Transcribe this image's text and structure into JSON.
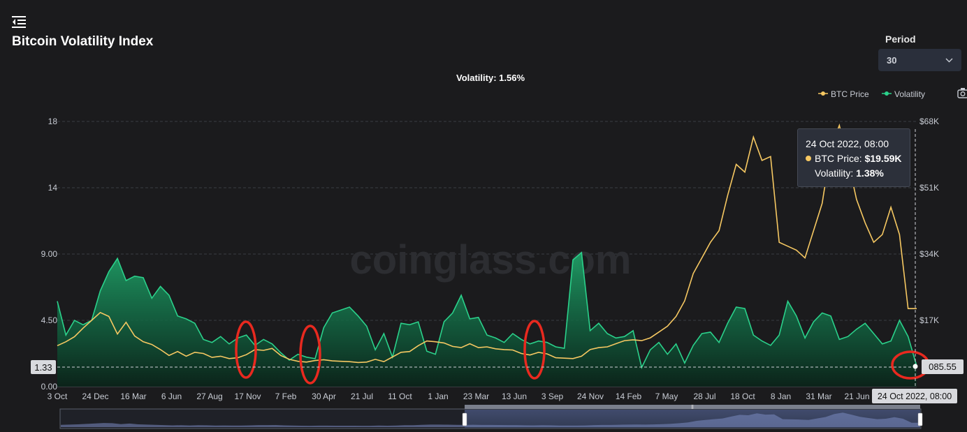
{
  "header": {
    "title": "Bitcoin Volatility Index",
    "period_label": "Period",
    "period_value": "30"
  },
  "summary": {
    "text": "Volatility: 1.56%"
  },
  "watermark": "coinglass.com",
  "legend": {
    "position": "top-right",
    "items": [
      {
        "name": "BTC Price",
        "color": "#f6c862"
      },
      {
        "name": "Volatility",
        "color": "#2bd18b"
      }
    ]
  },
  "tooltip": {
    "title": "24 Oct 2022, 08:00",
    "price_label": "BTC Price:",
    "price_value": "$19.59K",
    "vol_label": "Volatility:",
    "vol_value": "1.38%"
  },
  "crosshair": {
    "left_label": "1.33",
    "right_label": "085.55",
    "x_label": "24 Oct 2022, 08:00"
  },
  "icons": {
    "menu": "menu-collapse-icon",
    "camera": "camera-icon",
    "chevron": "chevron-down-icon"
  },
  "chart_data": {
    "type": "line",
    "x_ticks": [
      "3 Oct",
      "24 Dec",
      "16 Mar",
      "6 Jun",
      "27 Aug",
      "17 Nov",
      "7 Feb",
      "30 Apr",
      "21 Jul",
      "11 Oct",
      "1 Jan",
      "23 Mar",
      "13 Jun",
      "3 Sep",
      "24 Nov",
      "14 Feb",
      "7 May",
      "28 Jul",
      "18 Oct",
      "8 Jan",
      "31 Mar",
      "21 Jun"
    ],
    "y_left": {
      "ticks": [
        "0.00",
        "4.50",
        "9.00",
        "14",
        "18"
      ],
      "range": [
        0,
        18
      ]
    },
    "y_right": {
      "ticks": [
        "$17K",
        "$34K",
        "$51K",
        "$68K"
      ],
      "range": [
        0,
        68000
      ]
    },
    "grid": true,
    "x_index_range": [
      0,
      100
    ],
    "series": [
      {
        "name": "Volatility",
        "axis": "left",
        "color": "#2bd18b",
        "points": [
          [
            0,
            5.8
          ],
          [
            1,
            3.5
          ],
          [
            2,
            4.5
          ],
          [
            3,
            4.2
          ],
          [
            4,
            4.5
          ],
          [
            5,
            6.5
          ],
          [
            6,
            7.8
          ],
          [
            7,
            8.7
          ],
          [
            8,
            7.2
          ],
          [
            9,
            7.5
          ],
          [
            10,
            7.4
          ],
          [
            11,
            6.0
          ],
          [
            12,
            6.8
          ],
          [
            13,
            6.2
          ],
          [
            14,
            4.8
          ],
          [
            15,
            4.6
          ],
          [
            16,
            4.3
          ],
          [
            17,
            3.2
          ],
          [
            18,
            3.0
          ],
          [
            19,
            3.4
          ],
          [
            20,
            2.9
          ],
          [
            21,
            3.3
          ],
          [
            22,
            3.5
          ],
          [
            23,
            2.8
          ],
          [
            24,
            3.2
          ],
          [
            25,
            2.9
          ],
          [
            26,
            2.3
          ],
          [
            27,
            1.8
          ],
          [
            28,
            2.2
          ],
          [
            29,
            2.0
          ],
          [
            30,
            1.9
          ],
          [
            31,
            4.0
          ],
          [
            32,
            5.0
          ],
          [
            33,
            5.2
          ],
          [
            34,
            5.4
          ],
          [
            35,
            4.8
          ],
          [
            36,
            4.1
          ],
          [
            37,
            2.5
          ],
          [
            38,
            3.6
          ],
          [
            39,
            2.0
          ],
          [
            40,
            4.3
          ],
          [
            41,
            4.2
          ],
          [
            42,
            4.4
          ],
          [
            43,
            2.4
          ],
          [
            44,
            2.2
          ],
          [
            45,
            4.4
          ],
          [
            46,
            5.0
          ],
          [
            47,
            6.2
          ],
          [
            48,
            4.6
          ],
          [
            49,
            4.7
          ],
          [
            50,
            3.5
          ],
          [
            51,
            3.3
          ],
          [
            52,
            3.0
          ],
          [
            53,
            3.6
          ],
          [
            54,
            3.2
          ],
          [
            55,
            2.9
          ],
          [
            56,
            3.1
          ],
          [
            57,
            3.0
          ],
          [
            58,
            2.7
          ],
          [
            59,
            2.6
          ],
          [
            60,
            8.6
          ],
          [
            61,
            9.1
          ],
          [
            62,
            3.8
          ],
          [
            63,
            4.3
          ],
          [
            64,
            3.6
          ],
          [
            65,
            3.3
          ],
          [
            66,
            3.4
          ],
          [
            67,
            3.8
          ],
          [
            68,
            1.3
          ],
          [
            69,
            2.5
          ],
          [
            70,
            3.0
          ],
          [
            71,
            2.2
          ],
          [
            72,
            2.9
          ],
          [
            73,
            1.6
          ],
          [
            74,
            2.8
          ],
          [
            75,
            3.6
          ],
          [
            76,
            3.7
          ],
          [
            77,
            3.0
          ],
          [
            78,
            4.3
          ],
          [
            79,
            5.4
          ],
          [
            80,
            5.3
          ],
          [
            81,
            3.5
          ],
          [
            82,
            3.1
          ],
          [
            83,
            2.8
          ],
          [
            84,
            3.5
          ],
          [
            85,
            5.8
          ],
          [
            86,
            4.8
          ],
          [
            87,
            3.3
          ],
          [
            88,
            4.4
          ],
          [
            89,
            5.0
          ],
          [
            90,
            4.8
          ],
          [
            91,
            3.2
          ],
          [
            92,
            3.4
          ],
          [
            93,
            3.9
          ],
          [
            94,
            4.3
          ],
          [
            95,
            3.6
          ],
          [
            96,
            2.9
          ],
          [
            97,
            3.1
          ],
          [
            98,
            4.5
          ],
          [
            99,
            3.4
          ],
          [
            100,
            1.4
          ]
        ]
      },
      {
        "name": "BTC Price",
        "axis": "right",
        "color": "#f6c862",
        "points": [
          [
            0,
            10500
          ],
          [
            1,
            11500
          ],
          [
            2,
            12800
          ],
          [
            3,
            15000
          ],
          [
            4,
            17000
          ],
          [
            5,
            19000
          ],
          [
            6,
            18000
          ],
          [
            7,
            13500
          ],
          [
            8,
            16500
          ],
          [
            9,
            13000
          ],
          [
            10,
            11500
          ],
          [
            11,
            10800
          ],
          [
            12,
            9500
          ],
          [
            13,
            8000
          ],
          [
            14,
            9000
          ],
          [
            15,
            7800
          ],
          [
            16,
            8800
          ],
          [
            17,
            8500
          ],
          [
            18,
            7500
          ],
          [
            19,
            7800
          ],
          [
            20,
            7200
          ],
          [
            21,
            7400
          ],
          [
            22,
            8200
          ],
          [
            23,
            9500
          ],
          [
            24,
            9300
          ],
          [
            25,
            9800
          ],
          [
            26,
            8000
          ],
          [
            27,
            7000
          ],
          [
            28,
            6500
          ],
          [
            29,
            6300
          ],
          [
            30,
            6700
          ],
          [
            31,
            6900
          ],
          [
            32,
            6600
          ],
          [
            33,
            6500
          ],
          [
            34,
            6400
          ],
          [
            35,
            6200
          ],
          [
            36,
            6300
          ],
          [
            37,
            7000
          ],
          [
            38,
            6400
          ],
          [
            39,
            7600
          ],
          [
            40,
            8800
          ],
          [
            41,
            9000
          ],
          [
            42,
            10500
          ],
          [
            43,
            11700
          ],
          [
            44,
            11500
          ],
          [
            45,
            11200
          ],
          [
            46,
            10300
          ],
          [
            47,
            10000
          ],
          [
            48,
            11000
          ],
          [
            49,
            10000
          ],
          [
            50,
            10200
          ],
          [
            51,
            9700
          ],
          [
            52,
            9500
          ],
          [
            53,
            9400
          ],
          [
            54,
            8500
          ],
          [
            55,
            8100
          ],
          [
            56,
            8800
          ],
          [
            57,
            8400
          ],
          [
            58,
            7400
          ],
          [
            59,
            7300
          ],
          [
            60,
            7200
          ],
          [
            61,
            7800
          ],
          [
            62,
            9500
          ],
          [
            63,
            10000
          ],
          [
            64,
            10200
          ],
          [
            65,
            11000
          ],
          [
            66,
            11800
          ],
          [
            67,
            12000
          ],
          [
            68,
            11800
          ],
          [
            69,
            12500
          ],
          [
            70,
            14000
          ],
          [
            71,
            15500
          ],
          [
            72,
            18000
          ],
          [
            73,
            22000
          ],
          [
            74,
            29000
          ],
          [
            75,
            33000
          ],
          [
            76,
            37000
          ],
          [
            77,
            40000
          ],
          [
            78,
            49000
          ],
          [
            79,
            57000
          ],
          [
            80,
            55000
          ],
          [
            81,
            64000
          ],
          [
            82,
            58000
          ],
          [
            83,
            59000
          ],
          [
            84,
            37000
          ],
          [
            85,
            36000
          ],
          [
            86,
            35000
          ],
          [
            87,
            33000
          ],
          [
            88,
            40000
          ],
          [
            89,
            47000
          ],
          [
            90,
            61000
          ],
          [
            91,
            67000
          ],
          [
            92,
            58000
          ],
          [
            93,
            48000
          ],
          [
            94,
            42000
          ],
          [
            95,
            37000
          ],
          [
            96,
            39000
          ],
          [
            97,
            46000
          ],
          [
            98,
            39000
          ],
          [
            99,
            20000
          ],
          [
            100,
            20000
          ]
        ]
      }
    ]
  }
}
